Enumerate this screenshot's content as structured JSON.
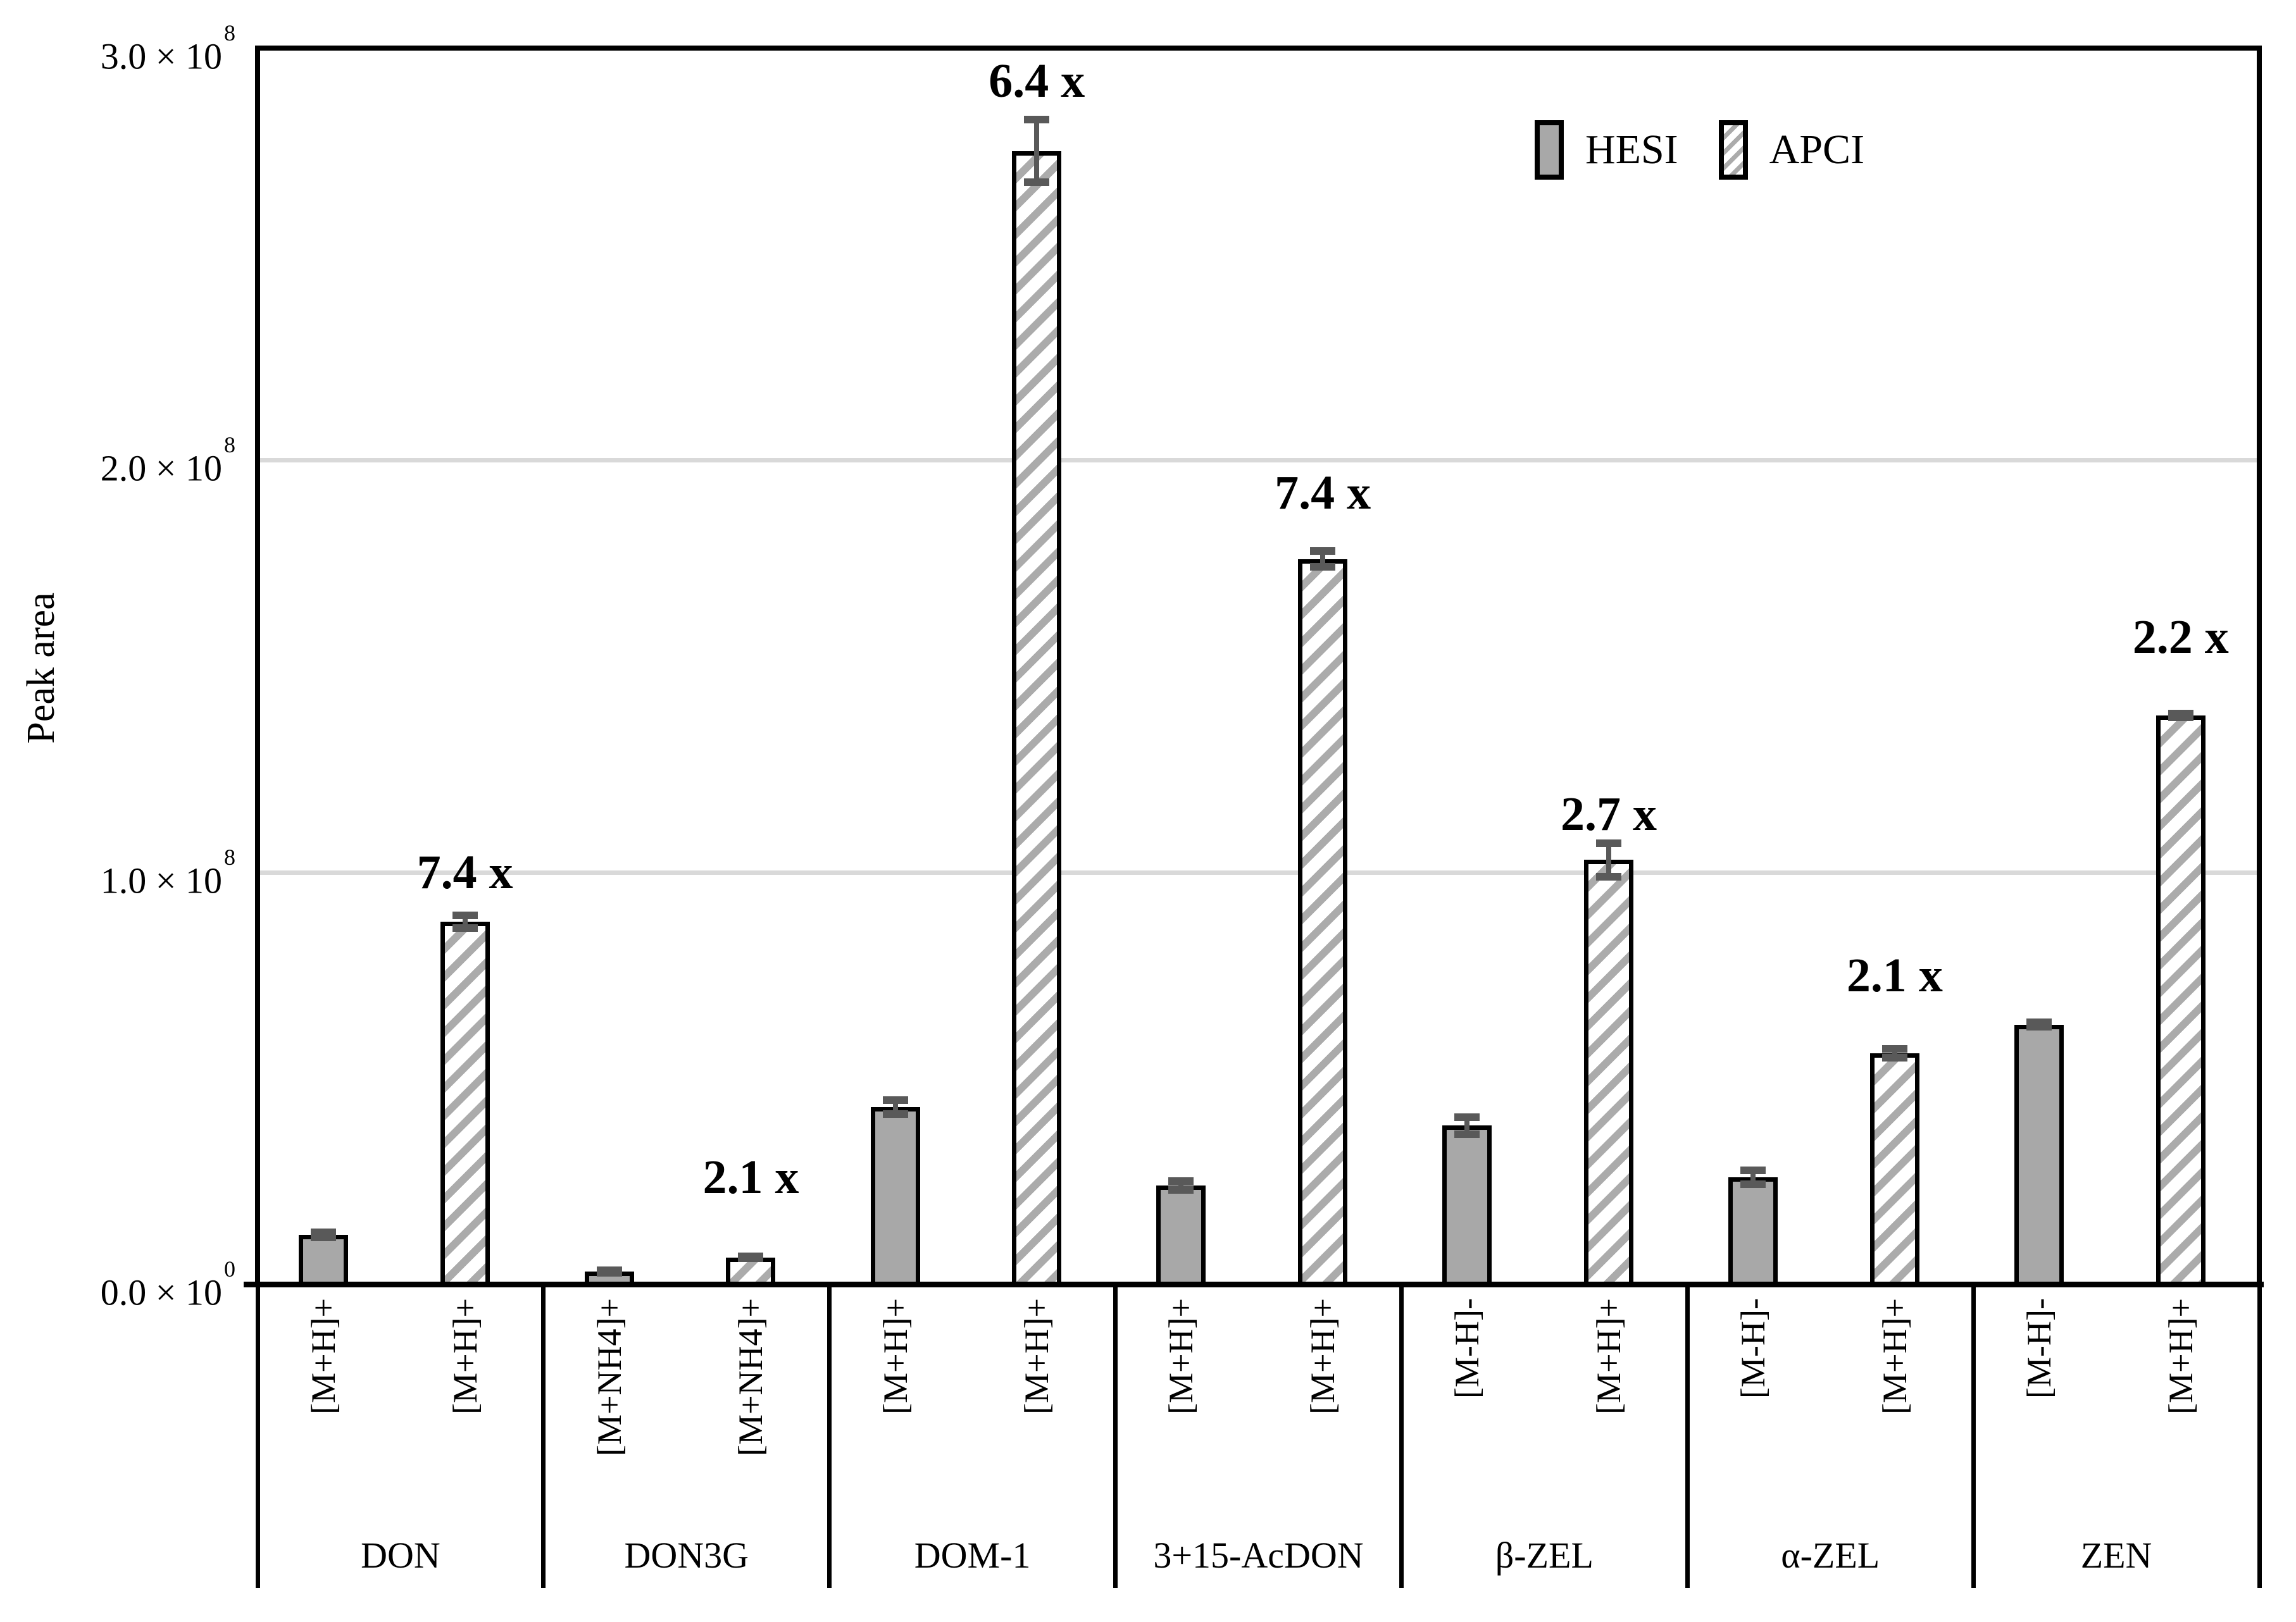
{
  "chart_data": {
    "type": "bar",
    "title": "",
    "xlabel": "",
    "ylabel": "Peak area",
    "ylim": [
      0,
      300000000
    ],
    "grid": "horizontal",
    "gridline_values": [
      100000000,
      200000000
    ],
    "legend_position": "top-right-inside",
    "colors": {
      "hesi_fill": "#a8a8a8",
      "apci_stripe": "#ababab",
      "error_bar": "#595959",
      "gridline": "#d9d9d9",
      "axis": "#000000"
    },
    "y_ticks": [
      {
        "value": 0,
        "mantissa": "0.0",
        "base": "10",
        "exponent": "0"
      },
      {
        "value": 100000000,
        "mantissa": "1.0",
        "base": "10",
        "exponent": "8"
      },
      {
        "value": 200000000,
        "mantissa": "2.0",
        "base": "10",
        "exponent": "8"
      },
      {
        "value": 300000000,
        "mantissa": "3.0",
        "base": "10",
        "exponent": "8"
      }
    ],
    "legend": {
      "items": [
        {
          "label": "HESI",
          "pattern": "solid"
        },
        {
          "label": "APCI",
          "pattern": "hatch"
        }
      ]
    },
    "series": [
      "HESI",
      "APCI"
    ],
    "groups": [
      {
        "name": "DON",
        "ions": [
          "[M+H]+",
          "[M+H]+"
        ],
        "values": [
          12000000,
          88000000
        ],
        "errors": [
          1500000,
          2500000
        ],
        "fold": {
          "label": "7.4 x",
          "y": 100000000
        }
      },
      {
        "name": "DON3G",
        "ions": [
          "[M+NH4]+",
          "[M+NH4]+"
        ],
        "values": [
          3100000,
          6500000
        ],
        "errors": [
          1200000,
          1200000
        ],
        "fold": {
          "label": "2.1 x",
          "y": 26000000
        }
      },
      {
        "name": "DOM-1",
        "ions": [
          "[M+H]+",
          "[M+H]+"
        ],
        "values": [
          43000000,
          275000000
        ],
        "errors": [
          2600000,
          8500000
        ],
        "fold": {
          "label": "6.4 x",
          "y": 292000000
        }
      },
      {
        "name": "3+15-AcDON",
        "ions": [
          "[M+H]+",
          "[M+H]+"
        ],
        "values": [
          24000000,
          176000000
        ],
        "errors": [
          2000000,
          2800000
        ],
        "fold": {
          "label": "7.4 x",
          "y": 192000000
        }
      },
      {
        "name": "β-ZEL",
        "ions": [
          "[M-H]-",
          "[M+H]+"
        ],
        "values": [
          38500000,
          103000000
        ],
        "errors": [
          3000000,
          5000000
        ],
        "fold": {
          "label": "2.7 x",
          "y": 114000000
        }
      },
      {
        "name": "α-ZEL",
        "ions": [
          "[M-H]-",
          "[M+H]+"
        ],
        "values": [
          26000000,
          56000000
        ],
        "errors": [
          2600000,
          2000000
        ],
        "fold": {
          "label": "2.1 x",
          "y": 75000000
        }
      },
      {
        "name": "ZEN",
        "ions": [
          "[M-H]-",
          "[M+H]+"
        ],
        "values": [
          63000000,
          138000000
        ],
        "errors": [
          1500000,
          1400000
        ],
        "fold": {
          "label": "2.2 x",
          "y": 157000000
        }
      }
    ]
  }
}
